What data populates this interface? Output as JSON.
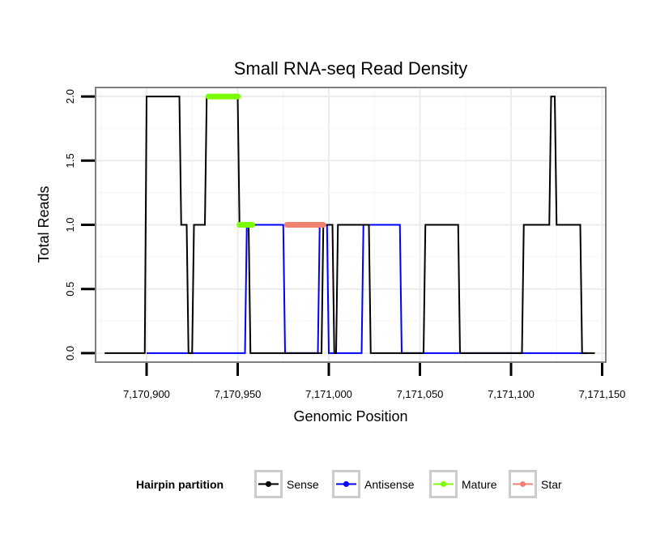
{
  "chart_data": {
    "type": "line",
    "title": "Small RNA-seq Read Density",
    "xlabel": "Genomic Position",
    "ylabel": "Total Reads",
    "xlim": [
      7170872,
      7171152
    ],
    "ylim": [
      -0.07,
      2.07
    ],
    "x_ticks": [
      7170900,
      7170950,
      7171000,
      7171050,
      7171100,
      7171150
    ],
    "x_tick_labels": [
      "7,170,900",
      "7,170,950",
      "7,171,000",
      "7,171,050",
      "7,171,100",
      "7,171,150"
    ],
    "y_ticks": [
      0,
      0.5,
      1,
      1.5,
      2
    ],
    "y_tick_labels": [
      "0.0",
      "0.5",
      "1.0",
      "1.5",
      "2.0"
    ],
    "grid": true,
    "legend": {
      "title": "Hairpin partition",
      "placement": "bottom",
      "entries": [
        {
          "name": "Sense",
          "color": "#000000"
        },
        {
          "name": "Antisense",
          "color": "#0000ff"
        },
        {
          "name": "Mature",
          "color": "#7cfc00"
        },
        {
          "name": "Star",
          "color": "#f08070"
        }
      ]
    },
    "series": [
      {
        "name": "Sense",
        "color": "#000000",
        "points": [
          [
            7170877,
            0
          ],
          [
            7170899,
            0
          ],
          [
            7170900,
            2
          ],
          [
            7170918,
            2
          ],
          [
            7170919,
            1
          ],
          [
            7170922,
            1
          ],
          [
            7170923,
            0
          ],
          [
            7170925,
            0
          ],
          [
            7170926,
            1
          ],
          [
            7170932,
            1
          ],
          [
            7170933,
            2
          ],
          [
            7170950,
            2
          ],
          [
            7170951,
            1
          ],
          [
            7170956,
            1
          ],
          [
            7170957,
            0
          ],
          [
            7170996,
            0
          ],
          [
            7170997,
            1
          ],
          [
            7171002,
            1
          ],
          [
            7171003,
            0
          ],
          [
            7171004,
            0
          ],
          [
            7171005,
            1
          ],
          [
            7171022,
            1
          ],
          [
            7171023,
            0
          ],
          [
            7171052,
            0
          ],
          [
            7171053,
            1
          ],
          [
            7171071,
            1
          ],
          [
            7171072,
            0
          ],
          [
            7171106,
            0
          ],
          [
            7171107,
            1
          ],
          [
            7171121,
            1
          ],
          [
            7171122,
            2
          ],
          [
            7171124,
            2
          ],
          [
            7171125,
            1
          ],
          [
            7171138,
            1
          ],
          [
            7171139,
            0
          ],
          [
            7171146,
            0
          ]
        ]
      },
      {
        "name": "Antisense",
        "color": "#0000ff",
        "points": [
          [
            7170900,
            0
          ],
          [
            7170954,
            0
          ],
          [
            7170955,
            1
          ],
          [
            7170975,
            1
          ],
          [
            7170976,
            0
          ],
          [
            7170994,
            0
          ],
          [
            7170995,
            1
          ],
          [
            7170999,
            1
          ],
          [
            7171000,
            0
          ],
          [
            7171018,
            0
          ],
          [
            7171019,
            1
          ],
          [
            7171039,
            1
          ],
          [
            7171040,
            0
          ],
          [
            7171142,
            0
          ]
        ]
      }
    ],
    "segments": [
      {
        "name": "Mature",
        "color": "#7cfc00",
        "x_start": 7170934,
        "x_end": 7170950,
        "y": 2
      },
      {
        "name": "Mature",
        "color": "#7cfc00",
        "x_start": 7170951,
        "x_end": 7170958,
        "y": 1
      },
      {
        "name": "Star",
        "color": "#f08070",
        "x_start": 7170977,
        "x_end": 7170997,
        "y": 1
      }
    ]
  }
}
